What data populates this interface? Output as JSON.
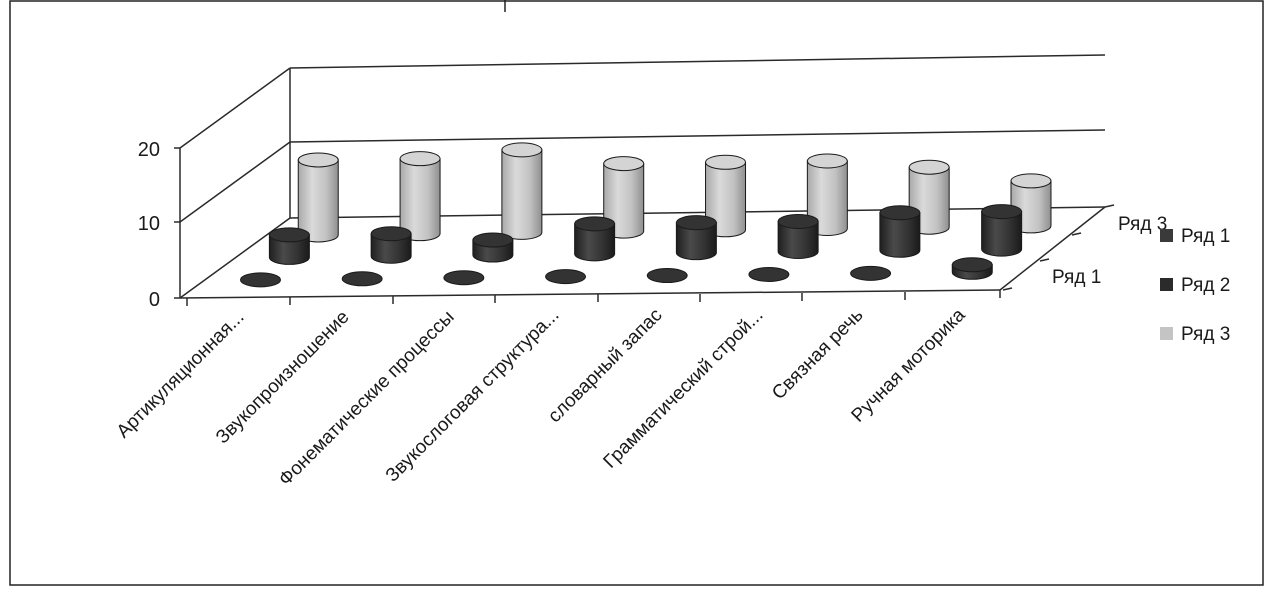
{
  "chart_data": {
    "type": "bar",
    "style": "3d-cylinder",
    "categories": [
      "Артикуляционная...",
      "Звукопроизношение",
      "Фонематические процессы",
      "Звукослоговая структура...",
      "словарный запас",
      "Грамматический строй...",
      "Связная речь",
      "Ручная моторика"
    ],
    "series": [
      {
        "name": "Ряд 1",
        "values": [
          0,
          0,
          0,
          0,
          0,
          0,
          0,
          1
        ],
        "color": "#3a3a3a"
      },
      {
        "name": "Ряд 2",
        "values": [
          3,
          3,
          2,
          4,
          4,
          4,
          5,
          5
        ],
        "color": "#2b2b2b"
      },
      {
        "name": "Ряд 3",
        "values": [
          10,
          10,
          11,
          9,
          9,
          9,
          8,
          6
        ],
        "color": "#c4c4c4"
      }
    ],
    "yticks": [
      "0",
      "10",
      "20"
    ],
    "ylim": [
      0,
      20
    ],
    "depth_axis_labels": [
      "Ряд 1",
      "Ряд 3"
    ],
    "legend": {
      "position": "right",
      "items": [
        "Ряд 1",
        "Ряд 2",
        "Ряд 3"
      ]
    },
    "grid": true,
    "title": "",
    "xlabel": "",
    "ylabel": ""
  },
  "colors": {
    "background": "#ffffff",
    "grid": "#2a2a2a",
    "series1": "#3a3a3a",
    "series2": "#2b2b2b",
    "series3": "#c4c4c4"
  }
}
